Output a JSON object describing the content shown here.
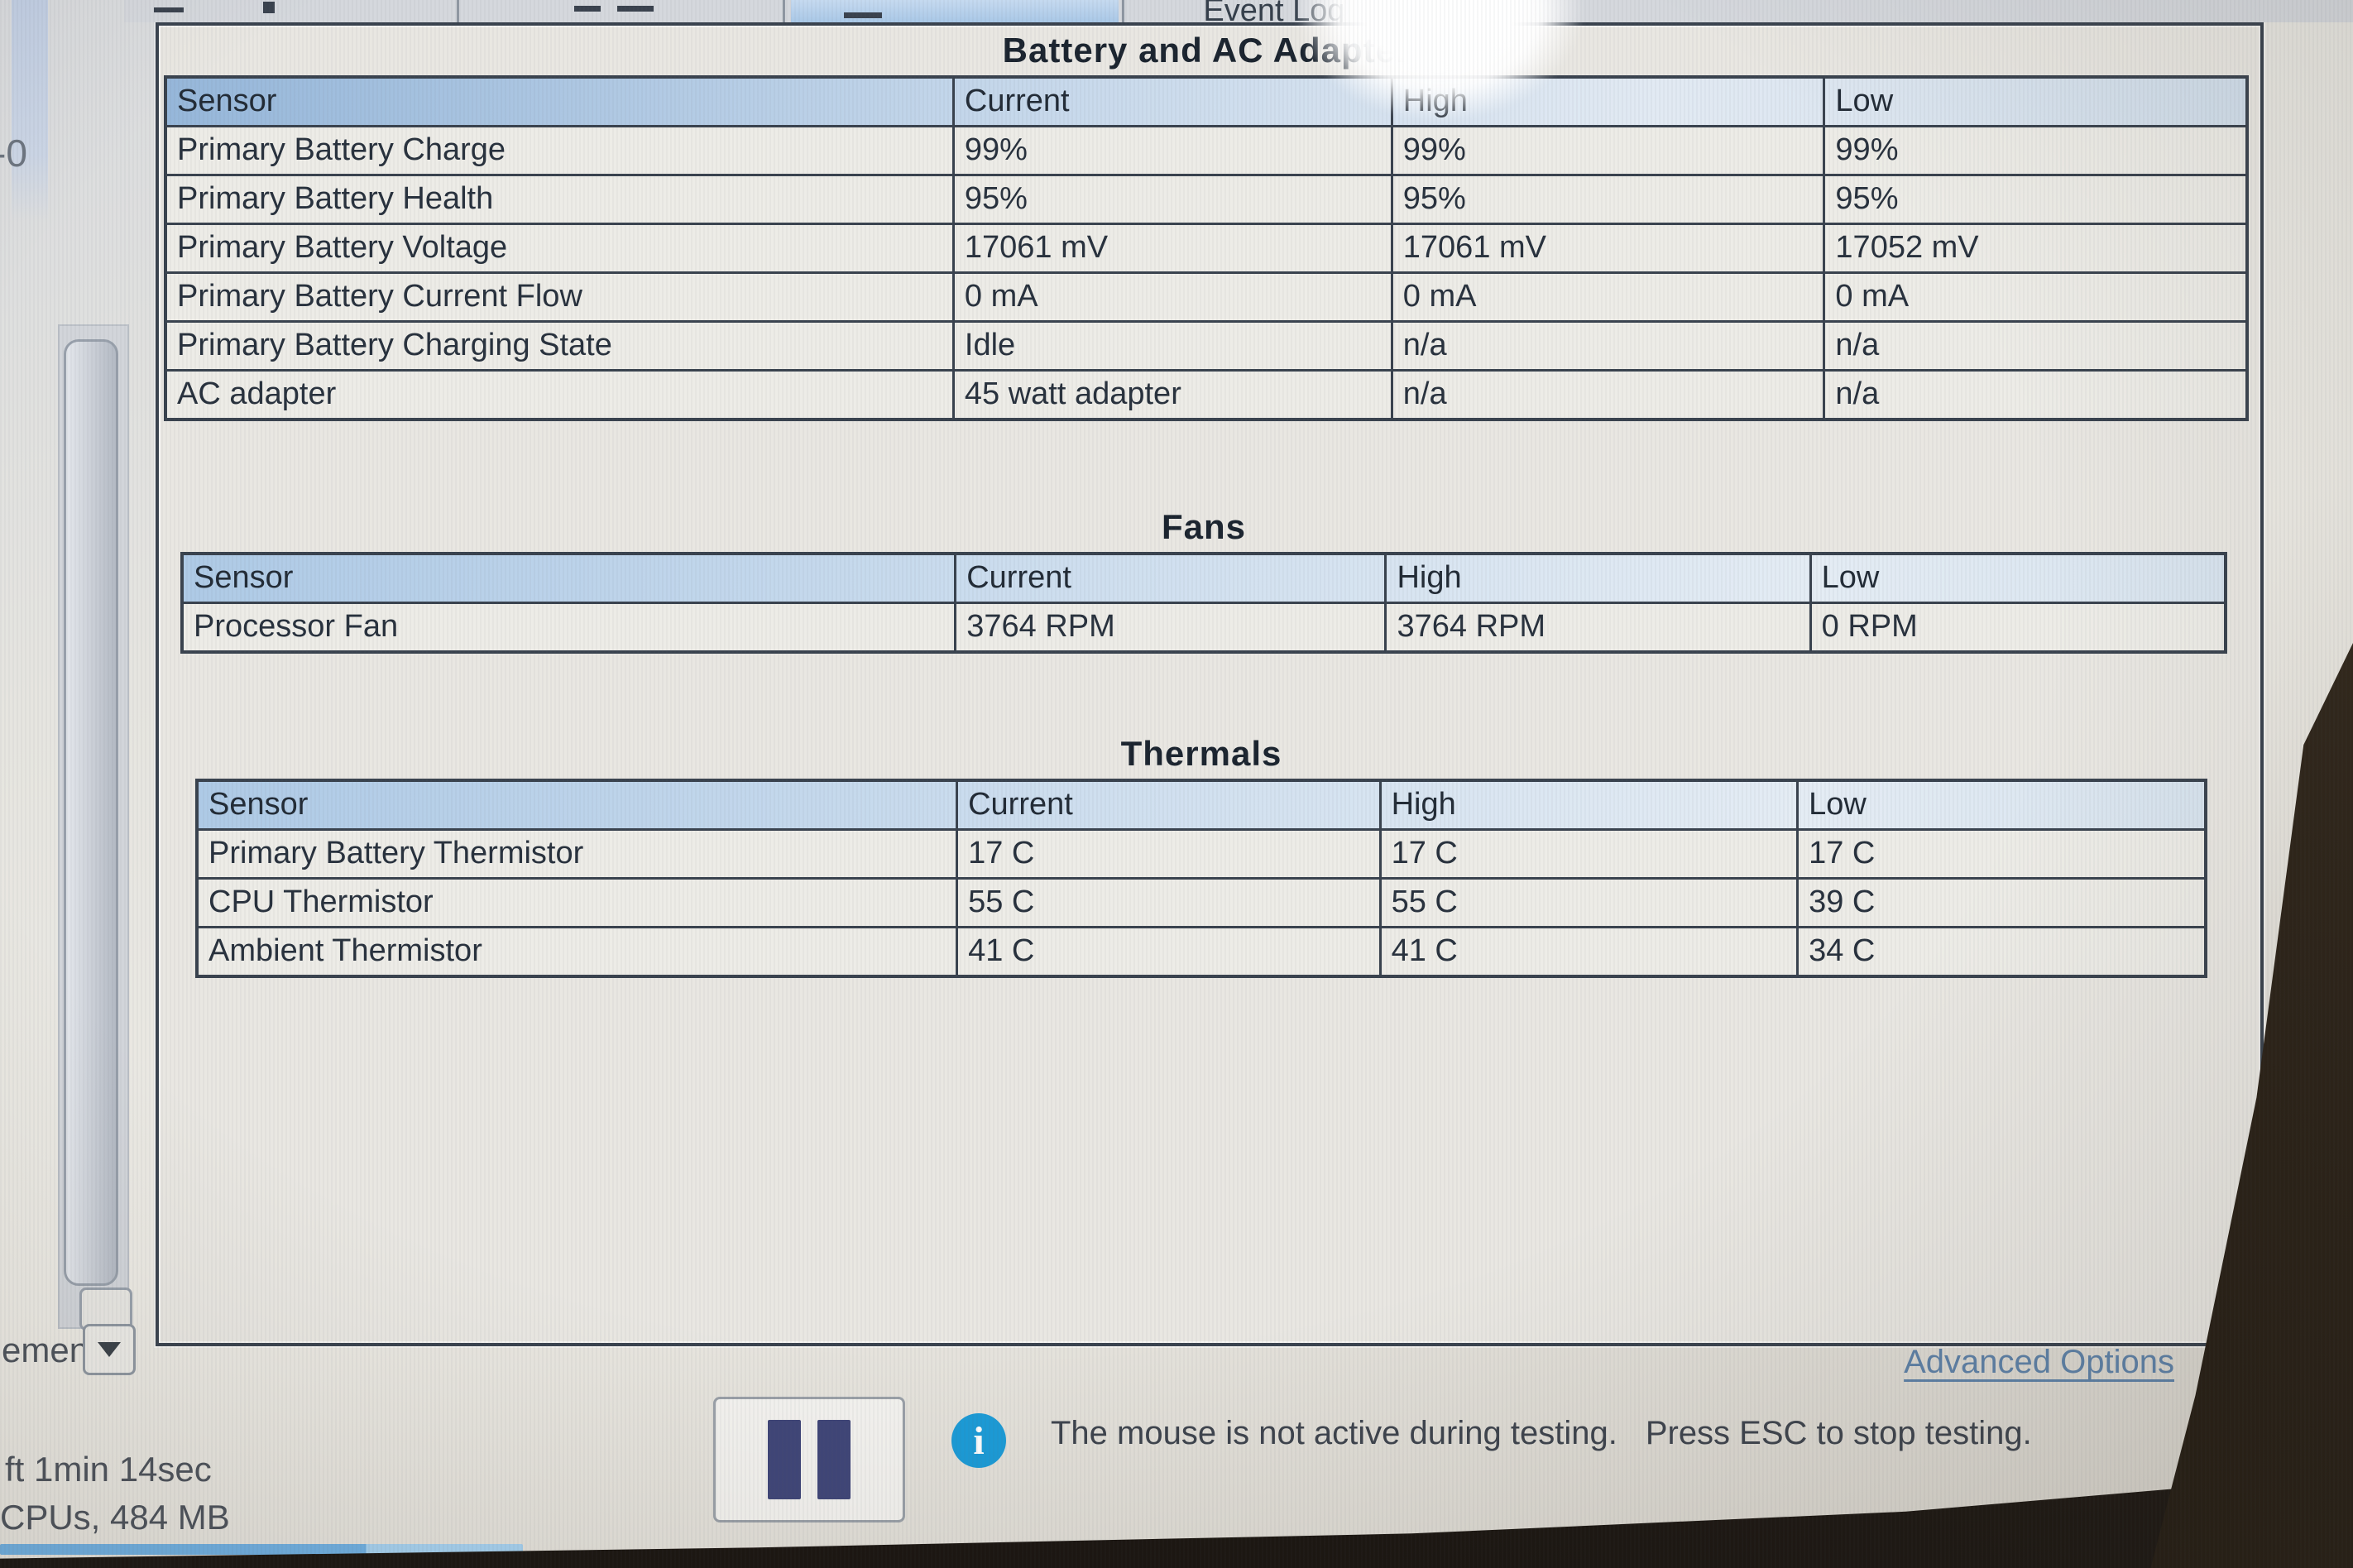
{
  "tabs": [
    {
      "label": "Event Log"
    }
  ],
  "sections": [
    {
      "title": "Battery and AC Adapter",
      "columns": [
        "Sensor",
        "Current",
        "High",
        "Low"
      ],
      "rows": [
        [
          "Primary Battery Charge",
          "99%",
          "99%",
          "99%"
        ],
        [
          "Primary Battery Health",
          "95%",
          "95%",
          "95%"
        ],
        [
          "Primary Battery Voltage",
          "17061 mV",
          "17061 mV",
          "17052 mV"
        ],
        [
          "Primary Battery Current Flow",
          "0 mA",
          "0 mA",
          "0 mA"
        ],
        [
          "Primary Battery Charging State",
          "Idle",
          "n/a",
          "n/a"
        ],
        [
          "AC adapter",
          "45 watt adapter",
          "n/a",
          "n/a"
        ]
      ]
    },
    {
      "title": "Fans",
      "columns": [
        "Sensor",
        "Current",
        "High",
        "Low"
      ],
      "rows": [
        [
          "Processor Fan",
          "3764 RPM",
          "3764 RPM",
          "0 RPM"
        ]
      ]
    },
    {
      "title": "Thermals",
      "columns": [
        "Sensor",
        "Current",
        "High",
        "Low"
      ],
      "rows": [
        [
          "Primary Battery Thermistor",
          "17 C",
          "17 C",
          "17 C"
        ],
        [
          "CPU Thermistor",
          "55 C",
          "55 C",
          "39 C"
        ],
        [
          "Ambient Thermistor",
          "41 C",
          "41 C",
          "34 C"
        ]
      ]
    }
  ],
  "footer": {
    "advanced_options_label": "Advanced Options",
    "message_part1": "The mouse is not active during testing.",
    "message_part2": "Press ESC to stop testing.",
    "time_left_fragment": "ft 1min 14sec",
    "memory_fragment": "CPUs, 484 MB",
    "dropdown_fragment": "ement",
    "side_fragment": "-0",
    "info_glyph": "i"
  },
  "colors": {
    "header_gradient_start": "#96b7da",
    "header_gradient_end": "#d2dfec",
    "table_border": "#39424e",
    "link_blue": "#5d81a8",
    "info_blue": "#1b9bd7",
    "pause_bar_blue": "#3f4578",
    "progress_blue": "#6fb0e3",
    "selected_tab_blue": "#a9c8e7"
  }
}
